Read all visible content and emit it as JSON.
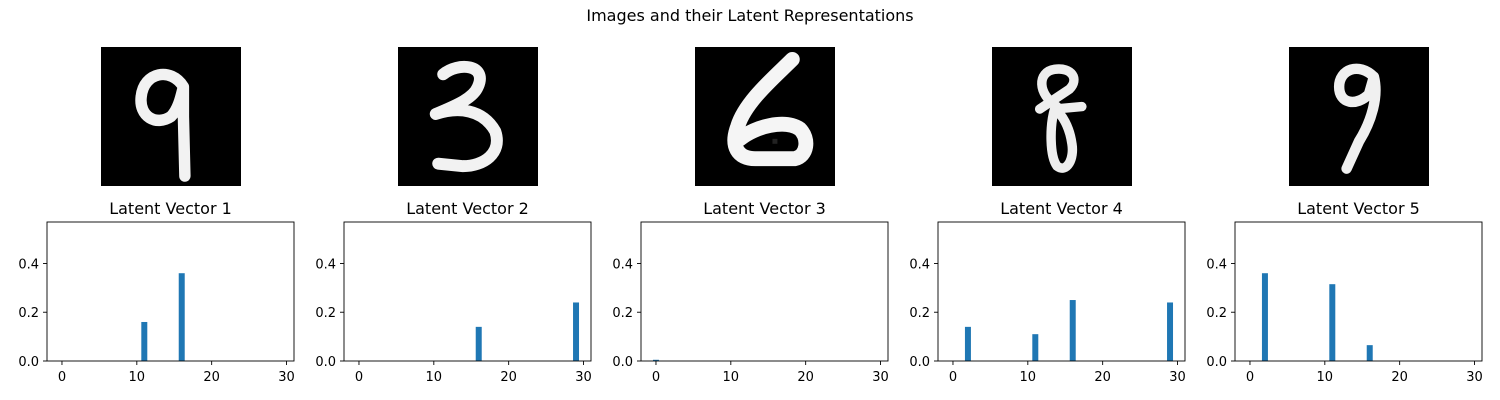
{
  "figure": {
    "suptitle": "Images and their Latent Representations"
  },
  "images": [
    {
      "digit": "9",
      "color_bg": "#000000"
    },
    {
      "digit": "3",
      "color_bg": "#000000"
    },
    {
      "digit": "6",
      "color_bg": "#000000"
    },
    {
      "digit": "8",
      "color_bg": "#000000"
    },
    {
      "digit": "9",
      "color_bg": "#000000"
    }
  ],
  "chart_data": [
    {
      "type": "bar",
      "title": "Latent Vector 1",
      "xlim": [
        -2,
        31
      ],
      "ylim": [
        0,
        0.57
      ],
      "xticks": [
        0,
        10,
        20,
        30
      ],
      "yticks": [
        0.0,
        0.2,
        0.4
      ],
      "bar_color": "#1f77b4",
      "bars": [
        {
          "x": 11,
          "value": 0.16
        },
        {
          "x": 16,
          "value": 0.36
        }
      ]
    },
    {
      "type": "bar",
      "title": "Latent Vector 2",
      "xlim": [
        -2,
        31
      ],
      "ylim": [
        0,
        0.57
      ],
      "xticks": [
        0,
        10,
        20,
        30
      ],
      "yticks": [
        0.0,
        0.2,
        0.4
      ],
      "bar_color": "#1f77b4",
      "bars": [
        {
          "x": 16,
          "value": 0.14
        },
        {
          "x": 29,
          "value": 0.24
        }
      ]
    },
    {
      "type": "bar",
      "title": "Latent Vector 3",
      "xlim": [
        -2,
        31
      ],
      "ylim": [
        0,
        0.57
      ],
      "xticks": [
        0,
        10,
        20,
        30
      ],
      "yticks": [
        0.0,
        0.2,
        0.4
      ],
      "bar_color": "#1f77b4",
      "bars": [
        {
          "x": 0,
          "value": 0.005
        }
      ]
    },
    {
      "type": "bar",
      "title": "Latent Vector 4",
      "xlim": [
        -2,
        31
      ],
      "ylim": [
        0,
        0.57
      ],
      "xticks": [
        0,
        10,
        20,
        30
      ],
      "yticks": [
        0.0,
        0.2,
        0.4
      ],
      "bar_color": "#1f77b4",
      "bars": [
        {
          "x": 2,
          "value": 0.14
        },
        {
          "x": 11,
          "value": 0.11
        },
        {
          "x": 16,
          "value": 0.25
        },
        {
          "x": 29,
          "value": 0.24
        }
      ]
    },
    {
      "type": "bar",
      "title": "Latent Vector 5",
      "xlim": [
        -2,
        31
      ],
      "ylim": [
        0,
        0.57
      ],
      "xticks": [
        0,
        10,
        20,
        30
      ],
      "yticks": [
        0.0,
        0.2,
        0.4
      ],
      "bar_color": "#1f77b4",
      "bars": [
        {
          "x": 2,
          "value": 0.36
        },
        {
          "x": 11,
          "value": 0.315
        },
        {
          "x": 16,
          "value": 0.065
        }
      ]
    }
  ]
}
